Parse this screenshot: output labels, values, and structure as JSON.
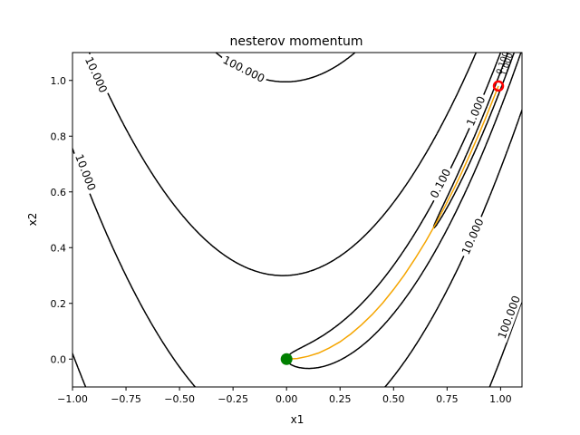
{
  "chart_data": {
    "type": "line",
    "title": "nesterov momentum",
    "xlabel": "x1",
    "ylabel": "x2",
    "xlim": [
      -1.0,
      1.1
    ],
    "ylim": [
      -0.1,
      1.1
    ],
    "xticks": [
      -1.0,
      -0.75,
      -0.5,
      -0.25,
      0.0,
      0.25,
      0.5,
      0.75,
      1.0
    ],
    "xtick_labels": [
      "−1.00",
      "−0.75",
      "−0.50",
      "−0.25",
      "0.00",
      "0.25",
      "0.50",
      "0.75",
      "1.00"
    ],
    "yticks": [
      0.0,
      0.2,
      0.4,
      0.6,
      0.8,
      1.0
    ],
    "ytick_labels": [
      "0.0",
      "0.2",
      "0.4",
      "0.6",
      "0.8",
      "1.0"
    ],
    "grid": false,
    "contour_function": "rosenbrock",
    "contour_levels": [
      {
        "level": 0.1,
        "label": "0.100",
        "label_at": [
          0.72,
          0.63
        ]
      },
      {
        "level": 1.0,
        "label": "1.000",
        "label_at": [
          0.885,
          0.89
        ]
      },
      {
        "level": 10.0,
        "label": "10.000",
        "label_at": [
          -0.89,
          1.02
        ]
      },
      {
        "level": 10.0,
        "label": "10.000",
        "label_at": [
          -0.94,
          0.67
        ]
      },
      {
        "level": 10.0,
        "label": "10.000",
        "label_at": [
          0.87,
          0.44
        ]
      },
      {
        "level": 100.0,
        "label": "100.000",
        "label_at": [
          -0.2,
          1.04
        ]
      },
      {
        "level": 100.0,
        "label": "100.000",
        "label_at": [
          1.04,
          0.15
        ]
      }
    ],
    "small_level_labels": [
      "0.100",
      "1.000"
    ],
    "path": {
      "color": "#f5a500",
      "x": [
        0.0,
        0.05,
        0.1,
        0.15,
        0.2,
        0.25,
        0.3,
        0.35,
        0.4,
        0.45,
        0.5,
        0.55,
        0.6,
        0.65,
        0.7,
        0.74,
        0.78,
        0.82,
        0.86,
        0.9,
        0.93,
        0.96,
        0.99
      ],
      "y": [
        0.0,
        0.002,
        0.01,
        0.022,
        0.04,
        0.062,
        0.09,
        0.123,
        0.16,
        0.202,
        0.25,
        0.302,
        0.36,
        0.422,
        0.49,
        0.548,
        0.608,
        0.672,
        0.74,
        0.81,
        0.865,
        0.922,
        0.98
      ]
    },
    "start": {
      "x": 0.0,
      "y": 0.0,
      "color": "#008000"
    },
    "end": {
      "x": 0.99,
      "y": 0.98,
      "color": "#ff0000"
    }
  }
}
